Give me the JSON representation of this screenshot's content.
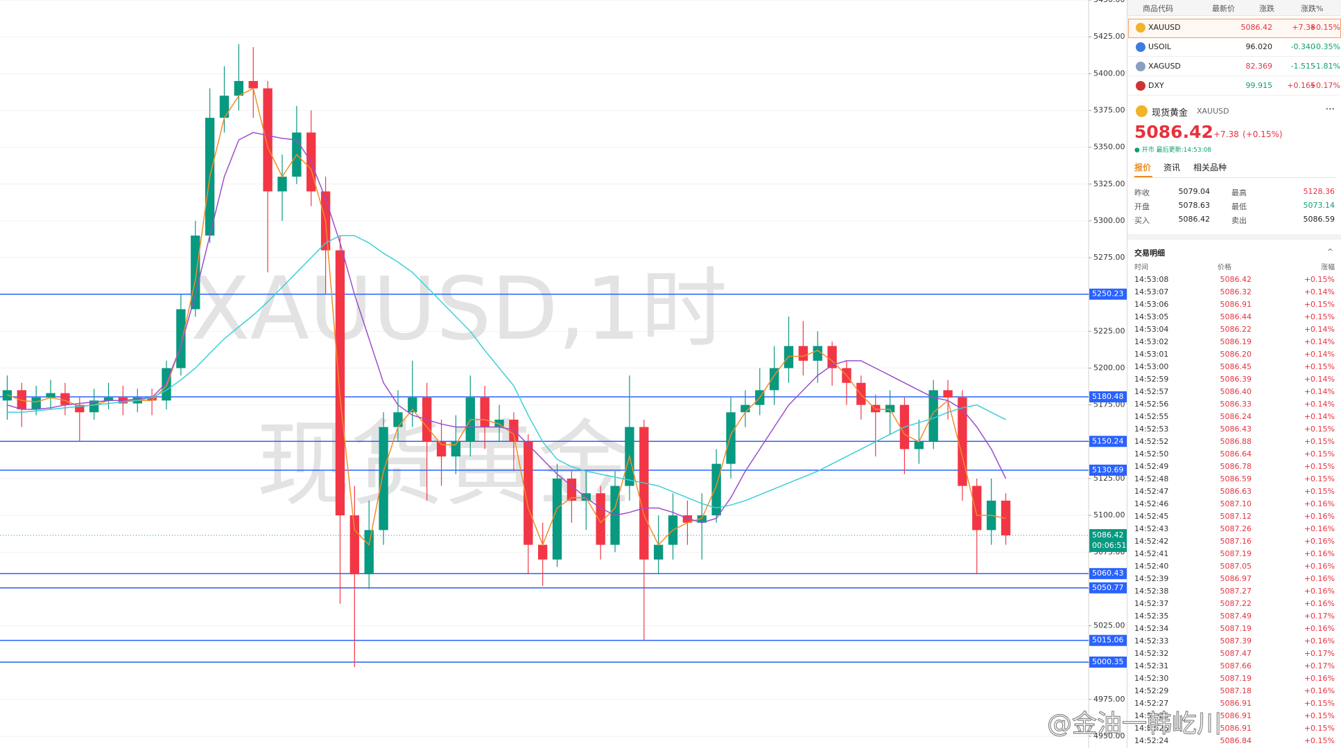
{
  "chart_data": {
    "type": "candlestick",
    "watermark": [
      "XAUUSD,1时",
      "现货黄金"
    ],
    "ylim": [
      4950,
      5450
    ],
    "yticks": [
      {
        "value": 4950,
        "label": "4950.00"
      },
      {
        "value": 4975,
        "label": "4975.00"
      },
      {
        "value": 5000,
        "label": "5000.00"
      },
      {
        "value": 5025,
        "label": "5025.00"
      },
      {
        "value": 5050,
        "label": "5050.00"
      },
      {
        "value": 5075,
        "label": "5075.00"
      },
      {
        "value": 5100,
        "label": "5100.00"
      },
      {
        "value": 5125,
        "label": "5125.00"
      },
      {
        "value": 5150,
        "label": "5150.00"
      },
      {
        "value": 5175,
        "label": "5175.00"
      },
      {
        "value": 5200,
        "label": "5200.00"
      },
      {
        "value": 5225,
        "label": "5225.00"
      },
      {
        "value": 5250,
        "label": "5250.00"
      },
      {
        "value": 5275,
        "label": "5275.00"
      },
      {
        "value": 5300,
        "label": "5300.00"
      },
      {
        "value": 5325,
        "label": "5325.00"
      },
      {
        "value": 5350,
        "label": "5350.00"
      },
      {
        "value": 5375,
        "label": "5375.00"
      },
      {
        "value": 5400,
        "label": "5400.00"
      },
      {
        "value": 5425,
        "label": "5425.00"
      },
      {
        "value": 5450,
        "label": "5450.00"
      }
    ],
    "grid": true,
    "up_color": "#089981",
    "down_color": "#f23645",
    "open": [
      5178,
      5185,
      5172,
      5180,
      5183,
      5175,
      5170,
      5178,
      5180,
      5176,
      5180,
      5178,
      5200,
      5240,
      5290,
      5370,
      5385,
      5395,
      5390,
      5320,
      5330,
      5360,
      5320,
      5280,
      5100,
      5060,
      5090,
      5160,
      5170,
      5180,
      5150,
      5140,
      5150,
      5180,
      5160,
      5165,
      5150,
      5080,
      5070,
      5125,
      5110,
      5115,
      5080,
      5120,
      5160,
      5070,
      5080,
      5100,
      5095,
      5100,
      5135,
      5170,
      5175,
      5185,
      5200,
      5215,
      5205,
      5215,
      5200,
      5190,
      5175,
      5170,
      5175,
      5145,
      5150,
      5185,
      5180,
      5120,
      5090,
      5110
    ],
    "high": [
      5195,
      5190,
      5188,
      5192,
      5190,
      5180,
      5186,
      5190,
      5188,
      5186,
      5186,
      5205,
      5250,
      5300,
      5390,
      5405,
      5420,
      5418,
      5395,
      5345,
      5378,
      5375,
      5330,
      5290,
      5120,
      5110,
      5170,
      5185,
      5205,
      5190,
      5165,
      5168,
      5195,
      5188,
      5175,
      5170,
      5155,
      5095,
      5135,
      5130,
      5130,
      5120,
      5130,
      5195,
      5165,
      5100,
      5115,
      5110,
      5115,
      5145,
      5180,
      5185,
      5200,
      5215,
      5235,
      5232,
      5225,
      5218,
      5205,
      5195,
      5182,
      5185,
      5180,
      5165,
      5192,
      5192,
      5185,
      5125,
      5125,
      5115
    ],
    "low": [
      5165,
      5160,
      5168,
      5172,
      5168,
      5150,
      5165,
      5172,
      5168,
      5170,
      5168,
      5172,
      5195,
      5235,
      5285,
      5360,
      5375,
      5370,
      5265,
      5300,
      5325,
      5310,
      5250,
      5040,
      4997,
      5050,
      5080,
      5150,
      5160,
      5110,
      5120,
      5128,
      5140,
      5145,
      5150,
      5130,
      5060,
      5052,
      5065,
      5095,
      5090,
      5070,
      5075,
      5110,
      5015,
      5060,
      5070,
      5080,
      5070,
      5095,
      5125,
      5160,
      5168,
      5175,
      5190,
      5195,
      5190,
      5188,
      5175,
      5165,
      5140,
      5155,
      5128,
      5135,
      5145,
      5165,
      5110,
      5060,
      5080,
      5080
    ],
    "close": [
      5185,
      5172,
      5180,
      5183,
      5175,
      5170,
      5178,
      5180,
      5176,
      5180,
      5178,
      5200,
      5240,
      5290,
      5370,
      5385,
      5395,
      5390,
      5320,
      5330,
      5360,
      5320,
      5280,
      5100,
      5060,
      5090,
      5160,
      5170,
      5180,
      5150,
      5140,
      5150,
      5180,
      5160,
      5165,
      5150,
      5080,
      5070,
      5125,
      5110,
      5115,
      5080,
      5120,
      5160,
      5070,
      5080,
      5100,
      5095,
      5100,
      5135,
      5170,
      5175,
      5185,
      5200,
      5215,
      5205,
      5215,
      5200,
      5190,
      5175,
      5170,
      5175,
      5145,
      5150,
      5185,
      5180,
      5120,
      5090,
      5110,
      5086.42
    ],
    "series": [
      {
        "color": "#f28c28",
        "values": [
          5182,
          5178,
          5177,
          5180,
          5178,
          5174,
          5175,
          5178,
          5178,
          5178,
          5178,
          5188,
          5215,
          5260,
          5330,
          5370,
          5385,
          5390,
          5350,
          5330,
          5345,
          5335,
          5300,
          5180,
          5090,
          5080,
          5130,
          5160,
          5172,
          5160,
          5148,
          5148,
          5165,
          5165,
          5162,
          5155,
          5105,
          5080,
          5105,
          5112,
          5112,
          5095,
          5105,
          5140,
          5100,
          5080,
          5090,
          5095,
          5098,
          5120,
          5155,
          5170,
          5180,
          5195,
          5208,
          5208,
          5212,
          5205,
          5195,
          5182,
          5172,
          5172,
          5155,
          5150,
          5170,
          5178,
          5140,
          5100,
          5100,
          5098
        ]
      },
      {
        "color": "#9c4dcc",
        "values": [
          5175,
          5172,
          5172,
          5173,
          5175,
          5176,
          5177,
          5178,
          5178,
          5179,
          5180,
          5190,
          5215,
          5250,
          5290,
          5330,
          5355,
          5360,
          5358,
          5356,
          5355,
          5340,
          5315,
          5285,
          5250,
          5220,
          5190,
          5175,
          5168,
          5165,
          5162,
          5160,
          5160,
          5160,
          5160,
          5158,
          5148,
          5138,
          5128,
          5120,
          5112,
          5105,
          5100,
          5102,
          5105,
          5105,
          5102,
          5098,
          5095,
          5098,
          5112,
          5130,
          5145,
          5160,
          5175,
          5185,
          5195,
          5202,
          5205,
          5205,
          5200,
          5195,
          5190,
          5185,
          5180,
          5178,
          5172,
          5160,
          5145,
          5125
        ]
      },
      {
        "color": "#3ccfd6",
        "values": [
          5170,
          5170,
          5171,
          5172,
          5173,
          5174,
          5175,
          5176,
          5177,
          5178,
          5180,
          5185,
          5192,
          5200,
          5210,
          5220,
          5228,
          5236,
          5245,
          5255,
          5265,
          5275,
          5285,
          5290,
          5290,
          5285,
          5278,
          5272,
          5265,
          5255,
          5245,
          5235,
          5225,
          5212,
          5200,
          5188,
          5168,
          5150,
          5138,
          5133,
          5130,
          5128,
          5126,
          5124,
          5122,
          5120,
          5116,
          5112,
          5108,
          5105,
          5107,
          5110,
          5114,
          5118,
          5122,
          5126,
          5130,
          5135,
          5140,
          5145,
          5150,
          5155,
          5160,
          5163,
          5166,
          5170,
          5173,
          5175,
          5170,
          5165
        ]
      }
    ],
    "hlines": [
      5250.23,
      5180.48,
      5150.24,
      5130.69,
      5060.43,
      5050.77,
      5015.06,
      5000.35
    ],
    "hline_color": "#2962ff",
    "last_price": 5086.42,
    "countdown": "00:06:51",
    "last_color": "#089981"
  },
  "watchlist": {
    "header": [
      "商品代码",
      "最新价",
      "涨跌",
      "涨跌%"
    ],
    "rows": [
      [
        "XAUUSD",
        "5086.42",
        "+7.38",
        "+0.15%"
      ],
      [
        "USOIL",
        "96.020",
        "-0.340",
        "-0.35%"
      ],
      [
        "XAGUSD",
        "82.369",
        "-1.515",
        "-1.81%"
      ],
      [
        "DXY",
        "99.915",
        "+0.165",
        "+0.17%"
      ]
    ]
  },
  "quote": {
    "name": "现货黄金",
    "symbol": "XAUUSD",
    "menu": "···",
    "price": "5086.42",
    "change": "+7.38",
    "change_pct": "(+0.15%)",
    "status": "● 开市 最后更新:14:53:08",
    "tabs": [
      "报价",
      "资讯",
      "相关品种"
    ],
    "stats": [
      [
        "昨收",
        "5079.04",
        "最高",
        "5128.36"
      ],
      [
        "开盘",
        "5078.63",
        "最低",
        "5073.14"
      ],
      [
        "买入",
        "5086.42",
        "卖出",
        "5086.59"
      ]
    ]
  },
  "trades": {
    "title": "交易明细",
    "collapse": "^",
    "header": [
      "时间",
      "价格",
      "涨幅"
    ],
    "rows": [
      [
        "14:53:08",
        "5086.42",
        "+0.15%"
      ],
      [
        "14:53:07",
        "5086.32",
        "+0.14%"
      ],
      [
        "14:53:06",
        "5086.91",
        "+0.15%"
      ],
      [
        "14:53:05",
        "5086.44",
        "+0.15%"
      ],
      [
        "14:53:04",
        "5086.22",
        "+0.14%"
      ],
      [
        "14:53:02",
        "5086.19",
        "+0.14%"
      ],
      [
        "14:53:01",
        "5086.20",
        "+0.14%"
      ],
      [
        "14:53:00",
        "5086.45",
        "+0.15%"
      ],
      [
        "14:52:59",
        "5086.39",
        "+0.14%"
      ],
      [
        "14:52:57",
        "5086.40",
        "+0.14%"
      ],
      [
        "14:52:56",
        "5086.33",
        "+0.14%"
      ],
      [
        "14:52:55",
        "5086.24",
        "+0.14%"
      ],
      [
        "14:52:53",
        "5086.43",
        "+0.15%"
      ],
      [
        "14:52:52",
        "5086.88",
        "+0.15%"
      ],
      [
        "14:52:50",
        "5086.64",
        "+0.15%"
      ],
      [
        "14:52:49",
        "5086.78",
        "+0.15%"
      ],
      [
        "14:52:48",
        "5086.59",
        "+0.15%"
      ],
      [
        "14:52:47",
        "5086.63",
        "+0.15%"
      ],
      [
        "14:52:46",
        "5087.10",
        "+0.16%"
      ],
      [
        "14:52:45",
        "5087.12",
        "+0.16%"
      ],
      [
        "14:52:43",
        "5087.26",
        "+0.16%"
      ],
      [
        "14:52:42",
        "5087.16",
        "+0.16%"
      ],
      [
        "14:52:41",
        "5087.19",
        "+0.16%"
      ],
      [
        "14:52:40",
        "5087.05",
        "+0.16%"
      ],
      [
        "14:52:39",
        "5086.97",
        "+0.16%"
      ],
      [
        "14:52:38",
        "5087.27",
        "+0.16%"
      ],
      [
        "14:52:37",
        "5087.22",
        "+0.16%"
      ],
      [
        "14:52:35",
        "5087.49",
        "+0.17%"
      ],
      [
        "14:52:34",
        "5087.19",
        "+0.16%"
      ],
      [
        "14:52:33",
        "5087.39",
        "+0.16%"
      ],
      [
        "14:52:32",
        "5087.47",
        "+0.17%"
      ],
      [
        "14:52:31",
        "5087.66",
        "+0.17%"
      ],
      [
        "14:52:30",
        "5087.19",
        "+0.16%"
      ],
      [
        "14:52:29",
        "5087.18",
        "+0.16%"
      ],
      [
        "14:52:27",
        "5086.91",
        "+0.15%"
      ],
      [
        "14:52:26",
        "5086.91",
        "+0.15%"
      ],
      [
        "14:52:25",
        "5086.91",
        "+0.15%"
      ],
      [
        "14:52:24",
        "5086.84",
        "+0.15%"
      ]
    ]
  },
  "weibo": "@金油一韩屹川"
}
